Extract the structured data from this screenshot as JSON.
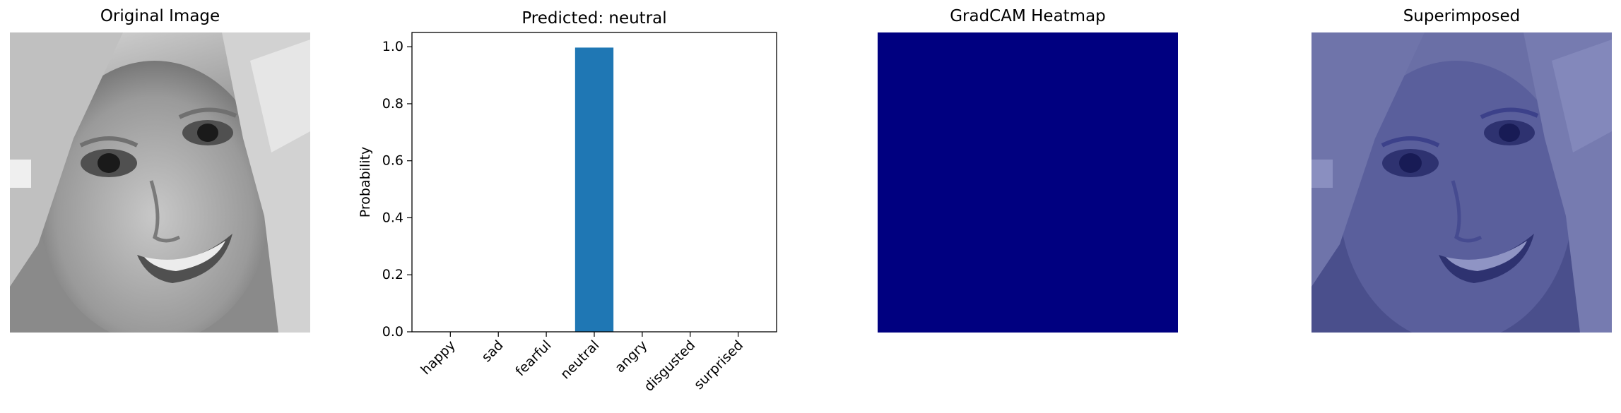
{
  "panels": {
    "original_title": "Original Image",
    "heatmap_title": "GradCAM Heatmap",
    "superimposed_title": "Superimposed"
  },
  "colors": {
    "bar": "#1f77b4",
    "heatmap": "#000080",
    "overlay_tint": "#000080"
  },
  "chart_data": {
    "type": "bar",
    "title": "Predicted: neutral",
    "xlabel": "",
    "ylabel": "Probability",
    "categories": [
      "happy",
      "sad",
      "fearful",
      "neutral",
      "angry",
      "disgusted",
      "surprised"
    ],
    "values": [
      0.0,
      0.0,
      0.0,
      0.997,
      0.0,
      0.0,
      0.0
    ],
    "ylim": [
      0,
      1.05
    ],
    "yticks": [
      "0.0",
      "0.2",
      "0.4",
      "0.6",
      "0.8",
      "1.0"
    ],
    "grid": false,
    "legend": "none"
  }
}
